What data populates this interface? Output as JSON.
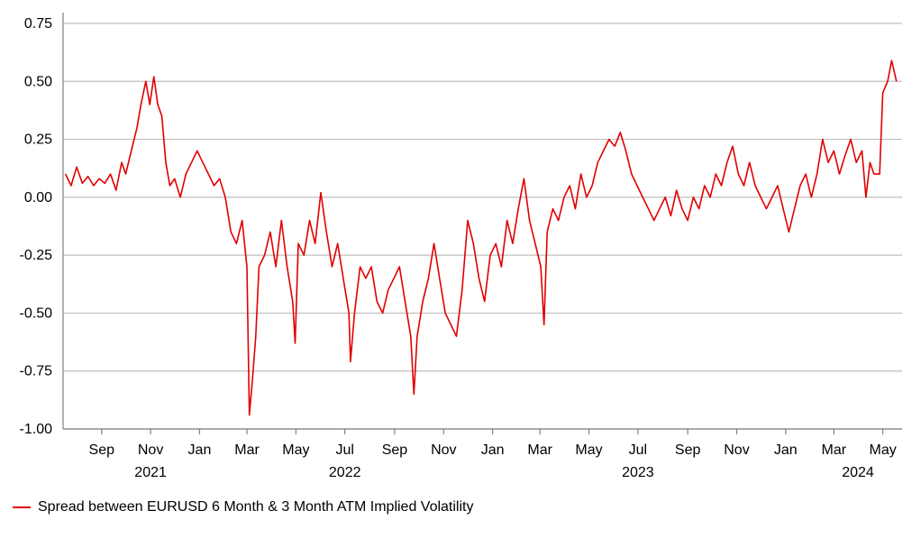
{
  "chart_data": {
    "type": "line",
    "title": "",
    "xlabel": "",
    "ylabel": "",
    "ylim": [
      -1.0,
      0.75
    ],
    "xlim": [
      "2021-07-15",
      "2024-05-25"
    ],
    "grid": true,
    "legend_position": "bottom-left",
    "colors": {
      "series": "#e00000",
      "grid": "#bfbfbf",
      "axis": "#808080"
    },
    "y_ticks": [
      {
        "value": 0.75,
        "label": "0.75"
      },
      {
        "value": 0.5,
        "label": "0.50"
      },
      {
        "value": 0.25,
        "label": "0.25"
      },
      {
        "value": 0.0,
        "label": "0.00"
      },
      {
        "value": -0.25,
        "label": "-0.25"
      },
      {
        "value": -0.5,
        "label": "-0.50"
      },
      {
        "value": -0.75,
        "label": "-0.75"
      },
      {
        "value": -1.0,
        "label": "-1.00"
      }
    ],
    "month_ticks": [
      {
        "date": "2021-09-01",
        "label": "Sep"
      },
      {
        "date": "2021-11-01",
        "label": "Nov"
      },
      {
        "date": "2022-01-01",
        "label": "Jan"
      },
      {
        "date": "2022-03-01",
        "label": "Mar"
      },
      {
        "date": "2022-05-01",
        "label": "May"
      },
      {
        "date": "2022-07-01",
        "label": "Jul"
      },
      {
        "date": "2022-09-01",
        "label": "Sep"
      },
      {
        "date": "2022-11-01",
        "label": "Nov"
      },
      {
        "date": "2023-01-01",
        "label": "Jan"
      },
      {
        "date": "2023-03-01",
        "label": "Mar"
      },
      {
        "date": "2023-05-01",
        "label": "May"
      },
      {
        "date": "2023-07-01",
        "label": "Jul"
      },
      {
        "date": "2023-09-01",
        "label": "Sep"
      },
      {
        "date": "2023-11-01",
        "label": "Nov"
      },
      {
        "date": "2024-01-01",
        "label": "Jan"
      },
      {
        "date": "2024-03-01",
        "label": "Mar"
      },
      {
        "date": "2024-05-01",
        "label": "May"
      }
    ],
    "year_labels": [
      {
        "date": "2021-11-01",
        "label": "2021"
      },
      {
        "date": "2022-07-01",
        "label": "2022"
      },
      {
        "date": "2023-07-01",
        "label": "2023"
      },
      {
        "date": "2024-03-31",
        "label": "2024"
      }
    ],
    "series": [
      {
        "name": "Spread between EURUSD 6 Month & 3 Month ATM Implied Volatility",
        "points": [
          [
            "2021-07-18",
            0.1
          ],
          [
            "2021-07-25",
            0.05
          ],
          [
            "2021-08-01",
            0.13
          ],
          [
            "2021-08-08",
            0.06
          ],
          [
            "2021-08-15",
            0.09
          ],
          [
            "2021-08-22",
            0.05
          ],
          [
            "2021-08-29",
            0.08
          ],
          [
            "2021-09-05",
            0.06
          ],
          [
            "2021-09-12",
            0.1
          ],
          [
            "2021-09-19",
            0.03
          ],
          [
            "2021-09-26",
            0.15
          ],
          [
            "2021-10-01",
            0.1
          ],
          [
            "2021-10-08",
            0.2
          ],
          [
            "2021-10-15",
            0.3
          ],
          [
            "2021-10-20",
            0.4
          ],
          [
            "2021-10-26",
            0.5
          ],
          [
            "2021-10-31",
            0.4
          ],
          [
            "2021-11-05",
            0.52
          ],
          [
            "2021-11-10",
            0.4
          ],
          [
            "2021-11-15",
            0.35
          ],
          [
            "2021-11-20",
            0.15
          ],
          [
            "2021-11-25",
            0.05
          ],
          [
            "2021-12-01",
            0.08
          ],
          [
            "2021-12-08",
            0.0
          ],
          [
            "2021-12-15",
            0.1
          ],
          [
            "2021-12-22",
            0.15
          ],
          [
            "2021-12-29",
            0.2
          ],
          [
            "2022-01-05",
            0.15
          ],
          [
            "2022-01-12",
            0.1
          ],
          [
            "2022-01-19",
            0.05
          ],
          [
            "2022-01-26",
            0.08
          ],
          [
            "2022-02-02",
            0.0
          ],
          [
            "2022-02-09",
            -0.15
          ],
          [
            "2022-02-16",
            -0.2
          ],
          [
            "2022-02-23",
            -0.1
          ],
          [
            "2022-03-01",
            -0.3
          ],
          [
            "2022-03-04",
            -0.94
          ],
          [
            "2022-03-08",
            -0.78
          ],
          [
            "2022-03-12",
            -0.6
          ],
          [
            "2022-03-16",
            -0.3
          ],
          [
            "2022-03-23",
            -0.25
          ],
          [
            "2022-03-30",
            -0.15
          ],
          [
            "2022-04-06",
            -0.3
          ],
          [
            "2022-04-13",
            -0.1
          ],
          [
            "2022-04-20",
            -0.3
          ],
          [
            "2022-04-27",
            -0.45
          ],
          [
            "2022-04-30",
            -0.63
          ],
          [
            "2022-05-04",
            -0.2
          ],
          [
            "2022-05-11",
            -0.25
          ],
          [
            "2022-05-18",
            -0.1
          ],
          [
            "2022-05-25",
            -0.2
          ],
          [
            "2022-06-01",
            0.02
          ],
          [
            "2022-06-08",
            -0.15
          ],
          [
            "2022-06-15",
            -0.3
          ],
          [
            "2022-06-22",
            -0.2
          ],
          [
            "2022-06-29",
            -0.35
          ],
          [
            "2022-07-06",
            -0.5
          ],
          [
            "2022-07-08",
            -0.71
          ],
          [
            "2022-07-13",
            -0.5
          ],
          [
            "2022-07-20",
            -0.3
          ],
          [
            "2022-07-27",
            -0.35
          ],
          [
            "2022-08-03",
            -0.3
          ],
          [
            "2022-08-10",
            -0.45
          ],
          [
            "2022-08-17",
            -0.5
          ],
          [
            "2022-08-24",
            -0.4
          ],
          [
            "2022-08-31",
            -0.35
          ],
          [
            "2022-09-07",
            -0.3
          ],
          [
            "2022-09-14",
            -0.45
          ],
          [
            "2022-09-21",
            -0.6
          ],
          [
            "2022-09-25",
            -0.85
          ],
          [
            "2022-09-29",
            -0.6
          ],
          [
            "2022-10-06",
            -0.45
          ],
          [
            "2022-10-13",
            -0.35
          ],
          [
            "2022-10-20",
            -0.2
          ],
          [
            "2022-10-27",
            -0.35
          ],
          [
            "2022-11-03",
            -0.5
          ],
          [
            "2022-11-10",
            -0.55
          ],
          [
            "2022-11-17",
            -0.6
          ],
          [
            "2022-11-24",
            -0.4
          ],
          [
            "2022-12-01",
            -0.1
          ],
          [
            "2022-12-08",
            -0.2
          ],
          [
            "2022-12-15",
            -0.35
          ],
          [
            "2022-12-22",
            -0.45
          ],
          [
            "2022-12-29",
            -0.25
          ],
          [
            "2023-01-05",
            -0.2
          ],
          [
            "2023-01-12",
            -0.3
          ],
          [
            "2023-01-19",
            -0.1
          ],
          [
            "2023-01-26",
            -0.2
          ],
          [
            "2023-02-02",
            -0.05
          ],
          [
            "2023-02-09",
            0.08
          ],
          [
            "2023-02-16",
            -0.1
          ],
          [
            "2023-02-23",
            -0.2
          ],
          [
            "2023-03-02",
            -0.3
          ],
          [
            "2023-03-06",
            -0.55
          ],
          [
            "2023-03-10",
            -0.15
          ],
          [
            "2023-03-17",
            -0.05
          ],
          [
            "2023-03-24",
            -0.1
          ],
          [
            "2023-03-31",
            0.0
          ],
          [
            "2023-04-07",
            0.05
          ],
          [
            "2023-04-14",
            -0.05
          ],
          [
            "2023-04-21",
            0.1
          ],
          [
            "2023-04-28",
            0.0
          ],
          [
            "2023-05-05",
            0.05
          ],
          [
            "2023-05-12",
            0.15
          ],
          [
            "2023-05-19",
            0.2
          ],
          [
            "2023-05-26",
            0.25
          ],
          [
            "2023-06-02",
            0.22
          ],
          [
            "2023-06-09",
            0.28
          ],
          [
            "2023-06-16",
            0.2
          ],
          [
            "2023-06-23",
            0.1
          ],
          [
            "2023-06-30",
            0.05
          ],
          [
            "2023-07-07",
            0.0
          ],
          [
            "2023-07-14",
            -0.05
          ],
          [
            "2023-07-21",
            -0.1
          ],
          [
            "2023-07-28",
            -0.05
          ],
          [
            "2023-08-04",
            0.0
          ],
          [
            "2023-08-11",
            -0.08
          ],
          [
            "2023-08-18",
            0.03
          ],
          [
            "2023-08-25",
            -0.05
          ],
          [
            "2023-09-01",
            -0.1
          ],
          [
            "2023-09-08",
            0.0
          ],
          [
            "2023-09-15",
            -0.05
          ],
          [
            "2023-09-22",
            0.05
          ],
          [
            "2023-09-29",
            0.0
          ],
          [
            "2023-10-06",
            0.1
          ],
          [
            "2023-10-13",
            0.05
          ],
          [
            "2023-10-20",
            0.15
          ],
          [
            "2023-10-27",
            0.22
          ],
          [
            "2023-11-03",
            0.1
          ],
          [
            "2023-11-10",
            0.05
          ],
          [
            "2023-11-17",
            0.15
          ],
          [
            "2023-11-24",
            0.05
          ],
          [
            "2023-12-01",
            0.0
          ],
          [
            "2023-12-08",
            -0.05
          ],
          [
            "2023-12-15",
            0.0
          ],
          [
            "2023-12-22",
            0.05
          ],
          [
            "2023-12-29",
            -0.05
          ],
          [
            "2024-01-05",
            -0.15
          ],
          [
            "2024-01-12",
            -0.05
          ],
          [
            "2024-01-19",
            0.05
          ],
          [
            "2024-01-26",
            0.1
          ],
          [
            "2024-02-02",
            0.0
          ],
          [
            "2024-02-09",
            0.1
          ],
          [
            "2024-02-16",
            0.25
          ],
          [
            "2024-02-23",
            0.15
          ],
          [
            "2024-03-01",
            0.2
          ],
          [
            "2024-03-08",
            0.1
          ],
          [
            "2024-03-15",
            0.18
          ],
          [
            "2024-03-22",
            0.25
          ],
          [
            "2024-03-29",
            0.15
          ],
          [
            "2024-04-05",
            0.2
          ],
          [
            "2024-04-10",
            0.0
          ],
          [
            "2024-04-15",
            0.15
          ],
          [
            "2024-04-20",
            0.1
          ],
          [
            "2024-04-27",
            0.1
          ],
          [
            "2024-05-01",
            0.45
          ],
          [
            "2024-05-07",
            0.5
          ],
          [
            "2024-05-12",
            0.59
          ],
          [
            "2024-05-18",
            0.5
          ]
        ]
      }
    ]
  }
}
